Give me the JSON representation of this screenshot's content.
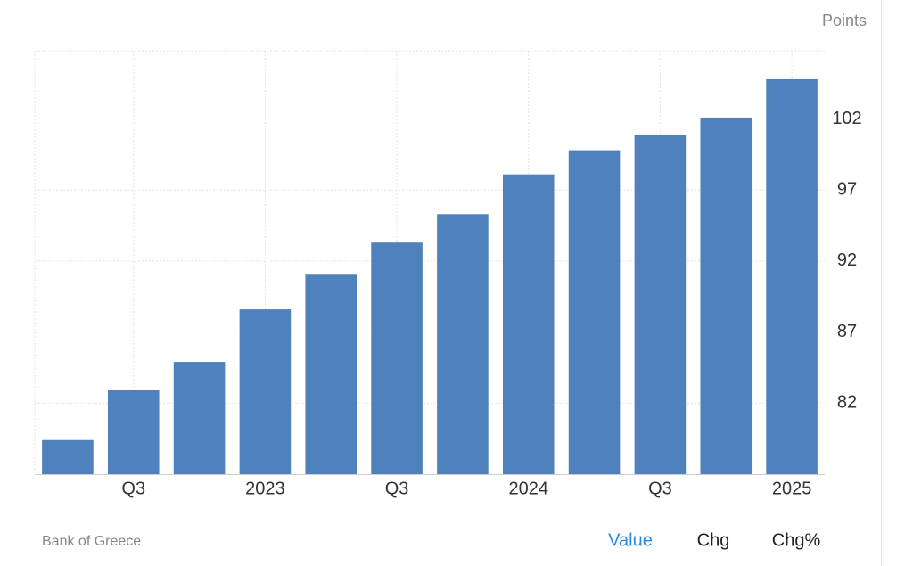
{
  "chart_data": {
    "type": "bar",
    "unit": "Points",
    "categories": [
      null,
      "Q3",
      null,
      "2023",
      null,
      "Q3",
      null,
      "2024",
      null,
      "Q3",
      null,
      "2025"
    ],
    "values": [
      79.4,
      82.9,
      84.9,
      88.6,
      91.1,
      93.3,
      95.3,
      98.1,
      99.8,
      100.9,
      102.1,
      104.8
    ],
    "color": "#4f81bd",
    "ylim": [
      77,
      106.8
    ],
    "yticks": [
      82,
      87,
      92,
      97,
      102
    ],
    "grid": true
  },
  "source": "Bank of Greece",
  "controls": [
    "Value",
    "Chg",
    "Chg%"
  ]
}
